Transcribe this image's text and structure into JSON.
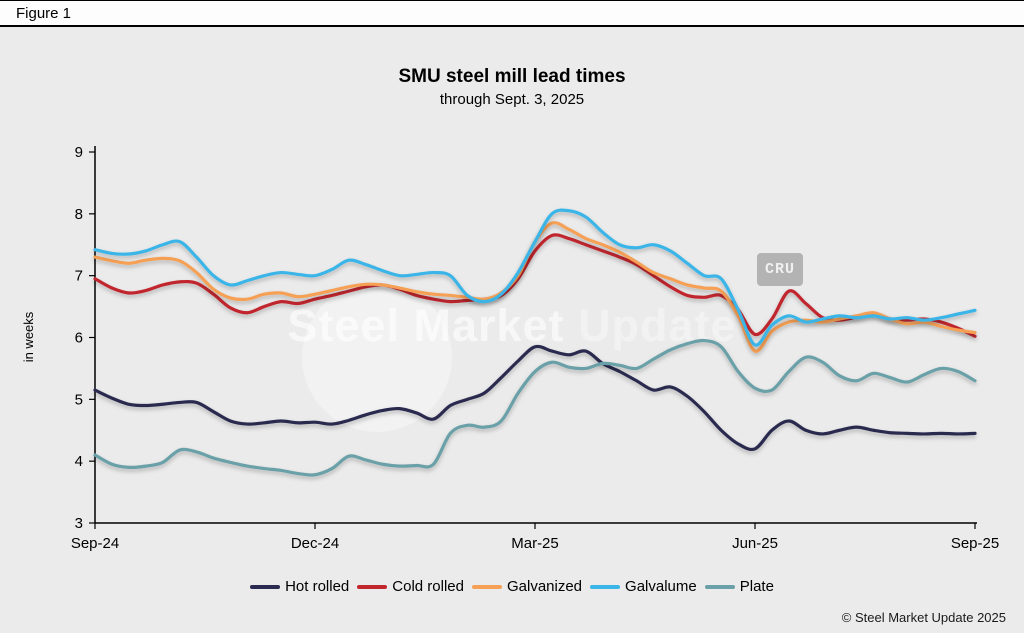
{
  "figure_label": "Figure 1",
  "title": "SMU steel mill lead times",
  "subtitle": "through Sept. 3, 2025",
  "watermark": {
    "primary": "Steel Market",
    "secondary": "Update",
    "logo": "CRU"
  },
  "footer": "© Steel Market Update 2025",
  "colors": {
    "background": "#ebebeb",
    "axis": "#000000",
    "hot_rolled": "#2b2a50",
    "cold_rolled": "#c1272d",
    "galvanized": "#f5a054",
    "galvalume": "#3ab5e8",
    "plate": "#6aa0a8"
  },
  "chart_data": {
    "type": "line",
    "title": "SMU steel mill lead times",
    "subtitle": "through Sept. 3, 2025",
    "xlabel": "",
    "ylabel": "in weeks",
    "ylim": [
      3,
      9
    ],
    "yticks": [
      3,
      4,
      5,
      6,
      7,
      8,
      9
    ],
    "xticks": [
      "Sep-24",
      "Dec-24",
      "Mar-25",
      "Jun-25",
      "Sep-25"
    ],
    "x_unit": "weekly observations Sep-24 through Sep-25",
    "grid": false,
    "legend_position": "bottom",
    "series": [
      {
        "name": "Hot rolled",
        "color": "#2b2a50",
        "values": [
          5.15,
          5.02,
          4.92,
          4.9,
          4.92,
          4.95,
          4.95,
          4.8,
          4.65,
          4.6,
          4.62,
          4.65,
          4.62,
          4.63,
          4.6,
          4.66,
          4.75,
          4.82,
          4.85,
          4.78,
          4.68,
          4.9,
          5.0,
          5.1,
          5.35,
          5.62,
          5.85,
          5.78,
          5.72,
          5.78,
          5.58,
          5.45,
          5.3,
          5.15,
          5.2,
          5.05,
          4.8,
          4.5,
          4.28,
          4.2,
          4.5,
          4.65,
          4.5,
          4.44,
          4.5,
          4.55,
          4.5,
          4.46,
          4.45,
          4.44,
          4.45,
          4.44,
          4.45
        ]
      },
      {
        "name": "Cold rolled",
        "color": "#c1272d",
        "values": [
          6.95,
          6.8,
          6.72,
          6.76,
          6.85,
          6.9,
          6.88,
          6.7,
          6.48,
          6.4,
          6.5,
          6.58,
          6.55,
          6.62,
          6.68,
          6.75,
          6.82,
          6.85,
          6.78,
          6.68,
          6.62,
          6.58,
          6.6,
          6.62,
          6.68,
          6.95,
          7.4,
          7.65,
          7.6,
          7.5,
          7.4,
          7.3,
          7.18,
          7.0,
          6.82,
          6.68,
          6.65,
          6.68,
          6.45,
          6.05,
          6.3,
          6.75,
          6.55,
          6.32,
          6.28,
          6.33,
          6.38,
          6.3,
          6.28,
          6.3,
          6.25,
          6.15,
          6.02
        ]
      },
      {
        "name": "Galvanized",
        "color": "#f5a054",
        "values": [
          7.3,
          7.24,
          7.2,
          7.25,
          7.28,
          7.24,
          7.05,
          6.78,
          6.64,
          6.62,
          6.7,
          6.72,
          6.66,
          6.7,
          6.76,
          6.82,
          6.86,
          6.85,
          6.8,
          6.74,
          6.7,
          6.68,
          6.65,
          6.62,
          6.72,
          7.0,
          7.55,
          7.85,
          7.75,
          7.6,
          7.5,
          7.38,
          7.22,
          7.05,
          6.95,
          6.85,
          6.8,
          6.75,
          6.35,
          5.78,
          6.1,
          6.25,
          6.28,
          6.25,
          6.3,
          6.35,
          6.4,
          6.3,
          6.22,
          6.25,
          6.18,
          6.12,
          6.08
        ]
      },
      {
        "name": "Galvalume",
        "color": "#3ab5e8",
        "values": [
          7.42,
          7.36,
          7.35,
          7.4,
          7.5,
          7.55,
          7.3,
          7.0,
          6.85,
          6.92,
          7.0,
          7.05,
          7.02,
          7.0,
          7.1,
          7.25,
          7.18,
          7.08,
          7.0,
          7.02,
          7.05,
          7.0,
          6.68,
          6.58,
          6.7,
          7.05,
          7.55,
          8.0,
          8.05,
          7.95,
          7.7,
          7.5,
          7.45,
          7.5,
          7.4,
          7.2,
          7.0,
          6.95,
          6.45,
          5.88,
          6.2,
          6.35,
          6.25,
          6.3,
          6.35,
          6.32,
          6.35,
          6.3,
          6.32,
          6.28,
          6.32,
          6.38,
          6.44
        ]
      },
      {
        "name": "Plate",
        "color": "#6aa0a8",
        "values": [
          4.1,
          3.95,
          3.9,
          3.92,
          3.98,
          4.18,
          4.15,
          4.05,
          3.98,
          3.92,
          3.88,
          3.85,
          3.8,
          3.78,
          3.88,
          4.08,
          4.02,
          3.95,
          3.92,
          3.93,
          3.95,
          4.45,
          4.58,
          4.55,
          4.65,
          5.1,
          5.45,
          5.6,
          5.52,
          5.5,
          5.58,
          5.55,
          5.5,
          5.65,
          5.8,
          5.9,
          5.95,
          5.85,
          5.45,
          5.18,
          5.15,
          5.45,
          5.68,
          5.6,
          5.38,
          5.3,
          5.42,
          5.35,
          5.28,
          5.4,
          5.5,
          5.45,
          5.3
        ]
      }
    ]
  }
}
